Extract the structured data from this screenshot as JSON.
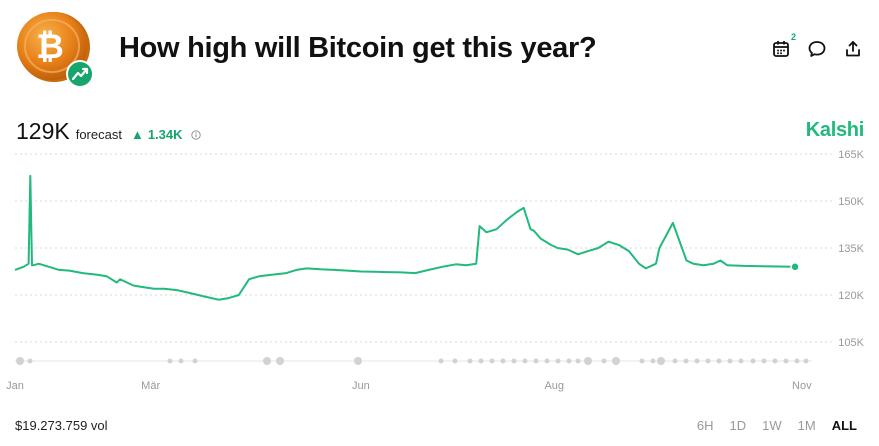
{
  "header": {
    "title": "How high will Bitcoin get this year?",
    "logo_letter": "₿",
    "calendar_badge": "2"
  },
  "stats": {
    "forecast_value": "129K",
    "forecast_label": "forecast",
    "delta_arrow": "▲",
    "delta_value": "1.34K",
    "brand": "Kalshi"
  },
  "footer": {
    "volume": "$19.273.759 vol",
    "ranges": [
      {
        "label": "6H",
        "active": false
      },
      {
        "label": "1D",
        "active": false
      },
      {
        "label": "1W",
        "active": false
      },
      {
        "label": "1M",
        "active": false
      },
      {
        "label": "ALL",
        "active": true
      }
    ]
  },
  "colors": {
    "line": "#22b97d",
    "grid": "#d8d8d8",
    "brand": "#22b97d"
  },
  "chart_data": {
    "type": "line",
    "title": "",
    "xlabel": "",
    "ylabel": "",
    "x_tick_labels": [
      "Jan",
      "Mär",
      "Jun",
      "Aug",
      "Nov"
    ],
    "x_ticks": [
      0,
      4.0,
      10.2,
      15.9,
      23.2
    ],
    "y_ticks": [
      105000,
      120000,
      135000,
      150000,
      165000
    ],
    "y_tick_labels": [
      "105K",
      "120K",
      "135K",
      "150K",
      "165K"
    ],
    "ylim": [
      100000,
      168000
    ],
    "xlim": [
      0,
      23.5
    ],
    "grid": "horizontal dotted",
    "series": [
      {
        "values_x": [
          0,
          0.25,
          0.4,
          0.45,
          0.5,
          0.55,
          0.7,
          1.0,
          1.3,
          1.6,
          2.0,
          2.4,
          2.7,
          3.0,
          3.1,
          3.3,
          3.5,
          3.8,
          4.1,
          4.4,
          4.8,
          5.2,
          5.6,
          6.0,
          6.3,
          6.6,
          6.9,
          7.2,
          7.6,
          8.0,
          8.3,
          8.6,
          9.0,
          9.4,
          9.8,
          10.2,
          10.6,
          11.0,
          11.4,
          11.8,
          12.2,
          12.6,
          13.0,
          13.3,
          13.6,
          13.7,
          13.9,
          14.2,
          14.5,
          14.8,
          15.0,
          15.2,
          15.3,
          15.5,
          15.8,
          16.0,
          16.3,
          16.6,
          16.9,
          17.2,
          17.5,
          17.8,
          18.1,
          18.4,
          18.6,
          18.9,
          19.0,
          19.2,
          19.4,
          19.6,
          19.8,
          20.0,
          20.3,
          20.6,
          20.8,
          21.0,
          21.5,
          22.0,
          22.5,
          23.0
        ],
        "values": [
          128000,
          129000,
          130000,
          158000,
          129500,
          129500,
          130000,
          129000,
          128000,
          127800,
          127000,
          126500,
          126000,
          124000,
          125000,
          124000,
          123000,
          122500,
          122000,
          122000,
          121500,
          120500,
          119500,
          118500,
          119000,
          120000,
          125000,
          126000,
          126500,
          127000,
          128000,
          128500,
          128200,
          128000,
          127800,
          127500,
          127400,
          127300,
          127200,
          127000,
          128000,
          129000,
          129800,
          129500,
          130000,
          142000,
          140000,
          141000,
          144000,
          146500,
          147800,
          141000,
          140500,
          138000,
          136000,
          135000,
          134500,
          133000,
          134000,
          135000,
          137000,
          136000,
          134000,
          130000,
          128500,
          130000,
          135000,
          139000,
          143000,
          137000,
          131000,
          130000,
          129500,
          130000,
          131000,
          129500,
          129300,
          129200,
          129100,
          129000
        ]
      }
    ],
    "current_marker": {
      "x": 23.0,
      "y": 129000
    }
  }
}
